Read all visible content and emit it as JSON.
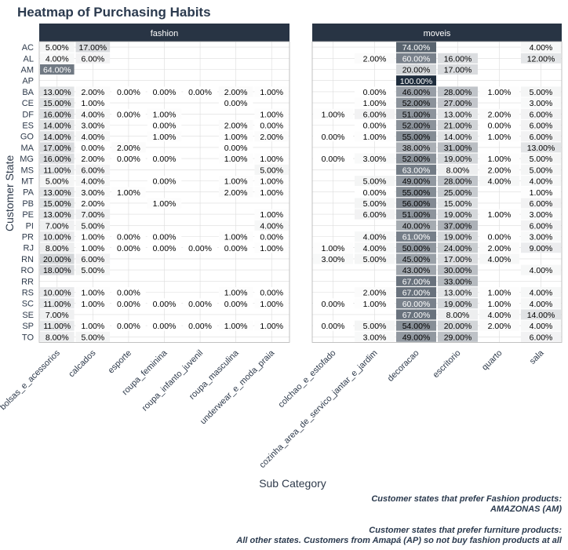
{
  "chart_data": {
    "type": "heatmap",
    "title": "Heatmap of Purchasing Habits",
    "xlabel": "Sub Category",
    "ylabel": "Customer State",
    "panels": [
      {
        "name": "fashion",
        "categories": [
          "bolsas_e_acessorios",
          "calcados",
          "esporte",
          "roupa_feminina",
          "roupa_infanto_juvenil",
          "roupa_masculina",
          "underwear_e_moda_praia"
        ],
        "values": [
          [
            5,
            17,
            null,
            null,
            null,
            null,
            null
          ],
          [
            4,
            6,
            null,
            null,
            null,
            null,
            null
          ],
          [
            64,
            null,
            null,
            null,
            null,
            null,
            null
          ],
          [
            null,
            null,
            null,
            null,
            null,
            null,
            null
          ],
          [
            13,
            2,
            0,
            0,
            0,
            2,
            1
          ],
          [
            15,
            1,
            null,
            null,
            null,
            0,
            null
          ],
          [
            16,
            4,
            0,
            1,
            null,
            null,
            1
          ],
          [
            14,
            3,
            null,
            0,
            null,
            2,
            0
          ],
          [
            14,
            4,
            null,
            1,
            null,
            1,
            2
          ],
          [
            17,
            0,
            2,
            null,
            null,
            0,
            null
          ],
          [
            16,
            2,
            0,
            0,
            null,
            1,
            1
          ],
          [
            11,
            6,
            null,
            null,
            null,
            null,
            5
          ],
          [
            5,
            4,
            null,
            0,
            null,
            1,
            1
          ],
          [
            13,
            3,
            1,
            null,
            null,
            2,
            1
          ],
          [
            15,
            2,
            null,
            1,
            null,
            null,
            null
          ],
          [
            13,
            7,
            null,
            null,
            null,
            null,
            1
          ],
          [
            7,
            5,
            null,
            null,
            null,
            null,
            4
          ],
          [
            10,
            1,
            0,
            0,
            null,
            1,
            0
          ],
          [
            8,
            1,
            0,
            0,
            0,
            0,
            1
          ],
          [
            20,
            6,
            null,
            null,
            null,
            null,
            null
          ],
          [
            18,
            5,
            null,
            null,
            null,
            null,
            null
          ],
          [
            null,
            null,
            null,
            null,
            null,
            null,
            null
          ],
          [
            10,
            1,
            0,
            null,
            null,
            1,
            0
          ],
          [
            11,
            1,
            0,
            0,
            0,
            0,
            1
          ],
          [
            7,
            null,
            null,
            null,
            null,
            null,
            null
          ],
          [
            11,
            1,
            0,
            0,
            0,
            1,
            1
          ],
          [
            8,
            5,
            null,
            null,
            null,
            null,
            null
          ]
        ]
      },
      {
        "name": "moveis",
        "categories": [
          "colchao_e_estofado",
          "cozinha_area_de_servico_jantar_e_jardim",
          "decoracao",
          "escritorio",
          "quarto",
          "sala"
        ],
        "values": [
          [
            null,
            null,
            74,
            null,
            null,
            4
          ],
          [
            null,
            2,
            60,
            16,
            null,
            12
          ],
          [
            null,
            null,
            20,
            17,
            null,
            null
          ],
          [
            null,
            null,
            100,
            null,
            null,
            null
          ],
          [
            null,
            0,
            46,
            28,
            1,
            5
          ],
          [
            null,
            1,
            52,
            27,
            null,
            3
          ],
          [
            1,
            6,
            51,
            13,
            2,
            6
          ],
          [
            null,
            0,
            52,
            21,
            0,
            6
          ],
          [
            0,
            1,
            55,
            14,
            1,
            6
          ],
          [
            null,
            null,
            38,
            31,
            null,
            13
          ],
          [
            0,
            3,
            52,
            19,
            1,
            5
          ],
          [
            null,
            null,
            63,
            8,
            2,
            5
          ],
          [
            null,
            5,
            49,
            28,
            4,
            4
          ],
          [
            null,
            0,
            55,
            25,
            null,
            1
          ],
          [
            null,
            5,
            56,
            15,
            null,
            6
          ],
          [
            null,
            6,
            51,
            19,
            1,
            3
          ],
          [
            null,
            null,
            40,
            37,
            null,
            6
          ],
          [
            null,
            4,
            61,
            19,
            0,
            3
          ],
          [
            1,
            4,
            50,
            24,
            2,
            9
          ],
          [
            3,
            5,
            45,
            17,
            4,
            null
          ],
          [
            null,
            null,
            43,
            30,
            null,
            4
          ],
          [
            null,
            null,
            67,
            33,
            null,
            null
          ],
          [
            null,
            2,
            67,
            13,
            1,
            4
          ],
          [
            0,
            1,
            60,
            19,
            1,
            4
          ],
          [
            null,
            null,
            67,
            8,
            4,
            14
          ],
          [
            0,
            5,
            54,
            20,
            2,
            4
          ],
          [
            null,
            3,
            49,
            29,
            null,
            6
          ]
        ]
      }
    ],
    "states": [
      "AC",
      "AL",
      "AM",
      "AP",
      "BA",
      "CE",
      "DF",
      "ES",
      "GO",
      "MA",
      "MG",
      "MS",
      "MT",
      "PA",
      "PB",
      "PE",
      "PI",
      "PR",
      "RJ",
      "RN",
      "RO",
      "RR",
      "RS",
      "SC",
      "SE",
      "SP",
      "TO"
    ],
    "value_format": "percent_2dp",
    "color_scale": {
      "low": "#ffffff",
      "high": "#1f2d3d",
      "domain": [
        0,
        100
      ]
    },
    "grid": true,
    "legend": "none"
  },
  "caption": {
    "line1": "Customer states that prefer Fashion products:",
    "line2": "AMAZONAS (AM)",
    "line3": "Customer states that prefer furniture products:",
    "line4": "All other states. Customers from Amapá (AP) so not buy fashion products at all"
  },
  "colors": {
    "strip": "#283444",
    "strip_text": "#ffffff",
    "grid": "#dcdcdc",
    "panel_border": "#b3b3b3",
    "text": "#2e3a4b",
    "cell_text_light": "#ffffff",
    "cell_text_dark": "#000000"
  }
}
